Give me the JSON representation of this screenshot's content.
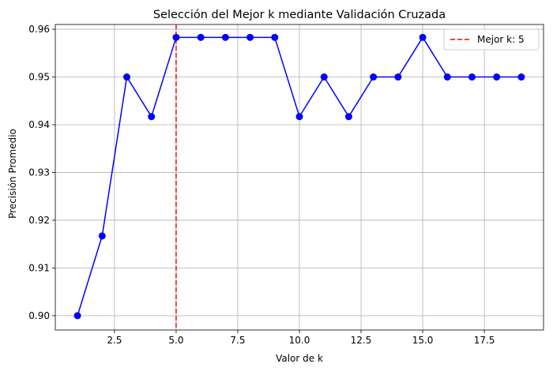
{
  "chart_data": {
    "type": "line",
    "title": "Selección del Mejor k mediante Validación Cruzada",
    "xlabel": "Valor de k",
    "ylabel": "Precisión Promedio",
    "xlim": [
      0.1,
      19.9
    ],
    "ylim": [
      0.897,
      0.961
    ],
    "xticks": [
      2.5,
      5.0,
      7.5,
      10.0,
      12.5,
      15.0,
      17.5
    ],
    "xtick_labels": [
      "2.5",
      "5.0",
      "7.5",
      "10.0",
      "12.5",
      "15.0",
      "17.5"
    ],
    "yticks": [
      0.9,
      0.91,
      0.92,
      0.93,
      0.94,
      0.95,
      0.96
    ],
    "ytick_labels": [
      "0.90",
      "0.91",
      "0.92",
      "0.93",
      "0.94",
      "0.95",
      "0.96"
    ],
    "grid": true,
    "legend_position": "top-right",
    "series": [
      {
        "x": [
          1,
          2,
          3,
          4,
          5,
          6,
          7,
          8,
          9,
          10,
          11,
          12,
          13,
          14,
          15,
          16,
          17,
          18,
          19
        ],
        "values": [
          0.9,
          0.9167,
          0.95,
          0.9417,
          0.9583,
          0.9583,
          0.9583,
          0.9583,
          0.9583,
          0.9417,
          0.95,
          0.9417,
          0.95,
          0.95,
          0.9583,
          0.95,
          0.95,
          0.95,
          0.95
        ],
        "color": "#0000ff",
        "marker": "circle"
      }
    ],
    "vline": {
      "x": 5,
      "label": "Mejor k: 5",
      "color": "#ff0000",
      "style": "dashed"
    }
  }
}
